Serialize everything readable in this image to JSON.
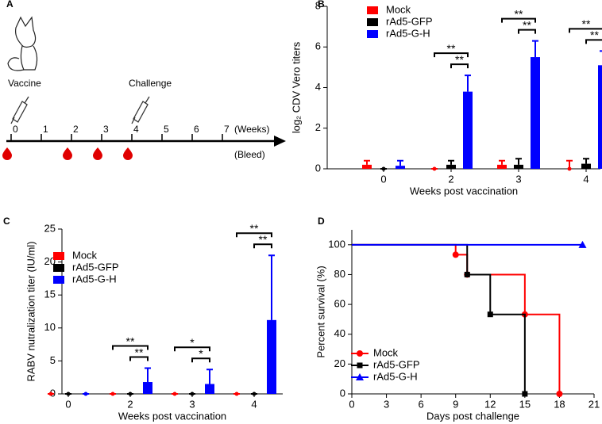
{
  "timeline": {
    "panel_label": "A",
    "weeks": [
      0,
      1,
      2,
      3,
      4,
      5,
      6,
      7
    ],
    "unit": "(Weeks)",
    "bleed_label": "(Bleed)",
    "bleed_weeks": [
      0,
      2,
      3,
      4
    ],
    "events": [
      {
        "label": "Vaccine",
        "week": 0
      },
      {
        "label": "Challenge",
        "week": 4
      }
    ]
  },
  "chart_data": [
    {
      "type": "bar",
      "panel_label": "B",
      "xlabel": "Weeks post vaccination",
      "ylabel": "log₂ CDV Vero titers",
      "categories": [
        "0",
        "2",
        "3",
        "4"
      ],
      "ylim": [
        0,
        8
      ],
      "yticks": [
        0,
        2,
        4,
        6,
        8
      ],
      "series": [
        {
          "name": "Mock",
          "color": "#ff0000",
          "values": [
            0.2,
            0,
            0.2,
            0
          ],
          "errors": [
            0.2,
            0,
            0.2,
            0.4
          ]
        },
        {
          "name": "rAd5-GFP",
          "color": "#000000",
          "values": [
            0,
            0.2,
            0.2,
            0.25
          ],
          "errors": [
            0,
            0.2,
            0.3,
            0.25
          ]
        },
        {
          "name": "rAd5-G-H",
          "color": "#0000ff",
          "values": [
            0.15,
            3.8,
            5.5,
            5.1
          ],
          "errors": [
            0.25,
            0.8,
            0.8,
            0.7
          ]
        }
      ],
      "annotations": [
        {
          "text": "**",
          "category": 1,
          "from_series": 0,
          "to_series": 2
        },
        {
          "text": "**",
          "category": 1,
          "from_series": 1,
          "to_series": 2
        },
        {
          "text": "**",
          "category": 2,
          "from_series": 0,
          "to_series": 2
        },
        {
          "text": "**",
          "category": 2,
          "from_series": 1,
          "to_series": 2
        },
        {
          "text": "**",
          "category": 3,
          "from_series": 0,
          "to_series": 2
        },
        {
          "text": "**",
          "category": 3,
          "from_series": 1,
          "to_series": 2
        }
      ]
    },
    {
      "type": "bar",
      "panel_label": "C",
      "xlabel": "Weeks post vaccination",
      "ylabel": "RABV nutralization titer (IU/ml)",
      "categories": [
        "0",
        "2",
        "3",
        "4"
      ],
      "ylim": [
        0,
        25
      ],
      "yticks": [
        0,
        5,
        10,
        15,
        20,
        25
      ],
      "series": [
        {
          "name": "Mock",
          "color": "#ff0000",
          "values": [
            0,
            0,
            0,
            0
          ],
          "errors": [
            0,
            0,
            0,
            0
          ]
        },
        {
          "name": "rAd5-GFP",
          "color": "#000000",
          "values": [
            0,
            0,
            0,
            0
          ],
          "errors": [
            0,
            0,
            0,
            0
          ]
        },
        {
          "name": "rAd5-G-H",
          "color": "#0000ff",
          "values": [
            0,
            1.8,
            1.5,
            11.2
          ],
          "errors": [
            0,
            2.1,
            2.2,
            9.8
          ]
        }
      ],
      "annotations": [
        {
          "text": "**",
          "category": 1,
          "from_series": 0,
          "to_series": 2
        },
        {
          "text": "**",
          "category": 1,
          "from_series": 1,
          "to_series": 2
        },
        {
          "text": "*",
          "category": 2,
          "from_series": 0,
          "to_series": 2
        },
        {
          "text": "*",
          "category": 2,
          "from_series": 1,
          "to_series": 2
        },
        {
          "text": "**",
          "category": 3,
          "from_series": 0,
          "to_series": 2
        },
        {
          "text": "**",
          "category": 3,
          "from_series": 1,
          "to_series": 2
        }
      ]
    },
    {
      "type": "step",
      "panel_label": "D",
      "xlabel": "Days post challenge",
      "ylabel": "Percent survival (%)",
      "xlim": [
        0,
        21
      ],
      "xticks": [
        0,
        3,
        6,
        9,
        12,
        15,
        18,
        21
      ],
      "ylim": [
        0,
        110
      ],
      "yticks": [
        0,
        20,
        40,
        60,
        80,
        100
      ],
      "series": [
        {
          "name": "Mock",
          "color": "#ff0000",
          "marker": "circle",
          "x": [
            0,
            9,
            10,
            15,
            18
          ],
          "values": [
            100,
            93.3,
            80,
            53.3,
            0
          ]
        },
        {
          "name": "rAd5-GFP",
          "color": "#000000",
          "marker": "square",
          "x": [
            0,
            10,
            12,
            15
          ],
          "values": [
            100,
            80,
            53.3,
            0
          ]
        },
        {
          "name": "rAd5-G-H",
          "color": "#0000ff",
          "marker": "triangle",
          "x": [
            0,
            20
          ],
          "values": [
            100,
            100
          ]
        }
      ]
    }
  ]
}
